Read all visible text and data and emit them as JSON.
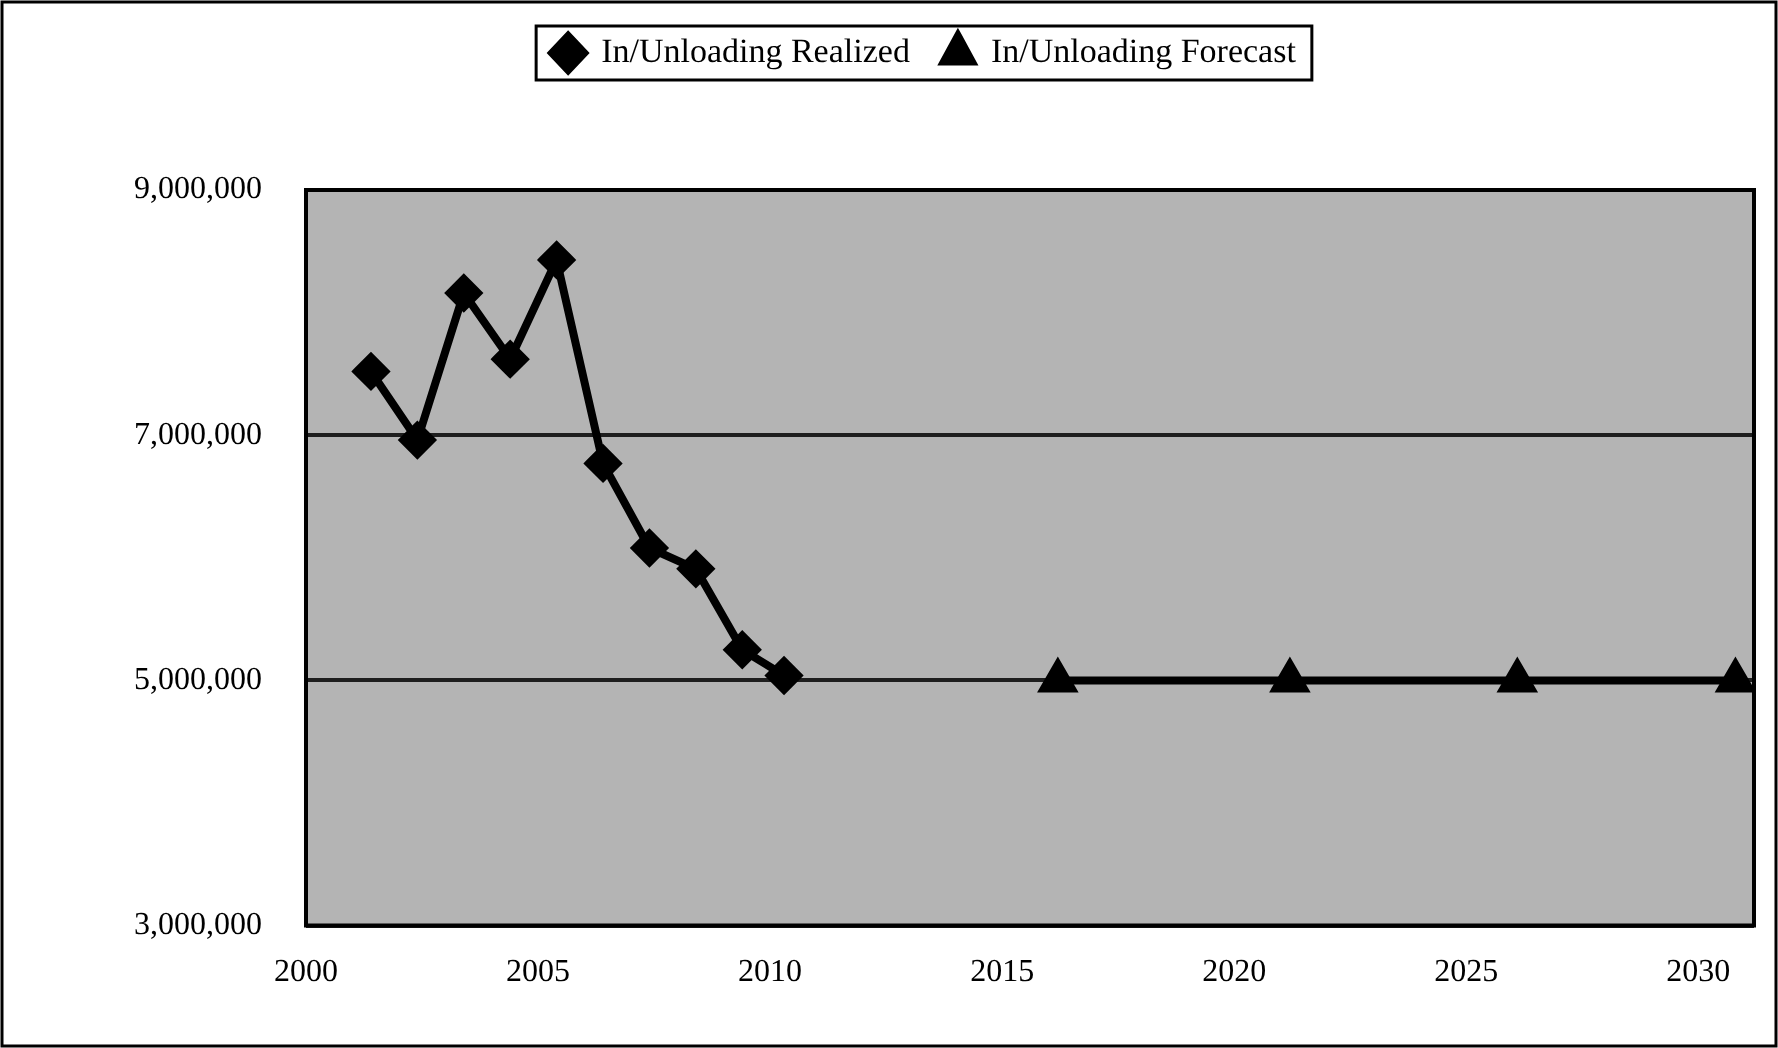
{
  "chart_data": {
    "type": "line",
    "series": [
      {
        "name": "In/Unloading Realized",
        "color": "#000000",
        "marker": "diamond",
        "x": [
          2001.4,
          2002.4,
          2003.4,
          2004.4,
          2005.4,
          2006.4,
          2007.4,
          2008.4,
          2009.4,
          2010.3
        ],
        "values": [
          7520000,
          6960000,
          8160000,
          7620000,
          8430000,
          6770000,
          6080000,
          5910000,
          5250000,
          5040000
        ]
      },
      {
        "name": "In/Unloading Forecast",
        "color": "#000000",
        "marker": "triangle",
        "x": [
          2016.2,
          2021.2,
          2026.1,
          2030.8
        ],
        "values": [
          5000000,
          5000000,
          5000000,
          5000000
        ]
      }
    ],
    "xlim": [
      2000,
      2031.2
    ],
    "xticks": [
      2000,
      2005,
      2010,
      2015,
      2020,
      2025,
      2030
    ],
    "ylim": [
      3000000,
      9000000
    ],
    "yticks": [
      {
        "value": 3000000,
        "label": "3,000,000"
      },
      {
        "value": 5000000,
        "label": "5,000,000"
      },
      {
        "value": 7000000,
        "label": "7,000,000"
      },
      {
        "value": 9000000,
        "label": "9,000,000"
      }
    ],
    "grid": "y",
    "legend": "top",
    "line_style": "solid"
  }
}
